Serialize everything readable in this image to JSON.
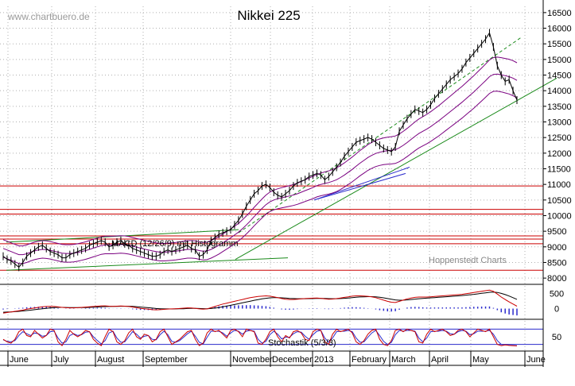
{
  "watermark": "www.chartbuero.de",
  "credit": "Hoppenstedt Charts",
  "chart_data": [
    {
      "type": "line",
      "title": "Nikkei 225",
      "y_ticks": [
        8000,
        8500,
        9000,
        9500,
        10000,
        10500,
        11000,
        11500,
        12000,
        12500,
        13000,
        13500,
        14000,
        14500,
        15000,
        15500,
        16000,
        16500
      ],
      "ylim": [
        7800,
        16700
      ],
      "x_labels": [
        "June",
        "July",
        "August",
        "September",
        "November",
        "December",
        "2013",
        "February",
        "March",
        "April",
        "May",
        "June"
      ],
      "horizontal_lines": [
        8250,
        9100,
        9250,
        9350,
        10050,
        10200,
        10950
      ],
      "series": [
        {
          "values": [
            8700,
            8600,
            8550,
            8450,
            8350,
            8500,
            8700,
            8800,
            8900,
            9000,
            9050,
            8950,
            8850,
            8800,
            8750,
            8650,
            8650,
            8750,
            8800,
            8850,
            8900,
            8950,
            9050,
            9100,
            9150,
            9200,
            9150,
            9000,
            9050,
            9150,
            9200,
            9100,
            9050,
            8950,
            8900,
            8850,
            8800,
            8750,
            8700,
            8700,
            8750,
            8850,
            8900,
            8850,
            8900,
            8950,
            9000,
            9050,
            8950,
            8900,
            8700,
            8750,
            8900,
            9200,
            9300,
            9400,
            9450,
            9500,
            9550,
            9700,
            9850,
            10050,
            10300,
            10500,
            10700,
            10800,
            10950,
            11000,
            10900,
            10750,
            10650,
            10600,
            10700,
            10800,
            10950,
            11050,
            11100,
            11150,
            11250,
            11300,
            11350,
            11300,
            11150,
            11250,
            11400,
            11550,
            11700,
            11900,
            12050,
            12200,
            12350,
            12400,
            12450,
            12500,
            12450,
            12350,
            12250,
            12150,
            12100,
            12050,
            12200,
            12700,
            12900,
            13100,
            13250,
            13400,
            13350,
            13300,
            13400,
            13550,
            13750,
            13900,
            14050,
            14200,
            14350,
            14450,
            14550,
            14700,
            14900,
            15050,
            15200,
            15350,
            15500,
            15650,
            15850,
            15400,
            14800,
            14500,
            14300,
            14350,
            14000,
            13700
          ]
        },
        {
          "values": [
            8950,
            8900,
            8850,
            8800,
            8750,
            8750,
            8780,
            8830,
            8870,
            8900,
            8920,
            8910,
            8890,
            8860,
            8830,
            8800,
            8790,
            8790,
            8800,
            8820,
            8850,
            8880,
            8920,
            8960,
            9000,
            9040,
            9060,
            9060,
            9060,
            9070,
            9080,
            9070,
            9050,
            9020,
            8990,
            8960,
            8930,
            8900,
            8870,
            8850,
            8830,
            8830,
            8840,
            8850,
            8860,
            8880,
            8900,
            8920,
            8920,
            8910,
            8880,
            8860,
            8870,
            8920,
            8980,
            9050,
            9130,
            9210,
            9290,
            9380,
            9470,
            9580,
            9700,
            9830,
            9970,
            10100,
            10230,
            10350,
            10440,
            10500,
            10540,
            10570,
            10600,
            10630,
            10660,
            10700,
            10750,
            10800,
            10850,
            10900,
            10960,
            11000,
            11030,
            11060,
            11100,
            11150,
            11220,
            11300,
            11390,
            11480,
            11580,
            11680,
            11770,
            11860,
            11930,
            11990,
            12030,
            12060,
            12080,
            12090,
            12110,
            12170,
            12250,
            12340,
            12440,
            12540,
            12630,
            12700,
            12770,
            12850,
            12940,
            13030,
            13130,
            13230,
            13330,
            13430,
            13530,
            13630,
            13740,
            13850,
            13960,
            14080,
            14200,
            14320,
            14450,
            14520,
            14530,
            14510,
            14480,
            14450,
            14400,
            14330
          ]
        }
      ]
    },
    {
      "type": "line",
      "title": "MACD (12/26/9) mit Histogramm",
      "y_ticks": [
        0,
        500
      ],
      "ylim": [
        -300,
        800
      ],
      "series": [
        {
          "values": [
            -150,
            -130,
            -110,
            -90,
            -70,
            -50,
            -20,
            0,
            20,
            40,
            60,
            70,
            75,
            70,
            55,
            40,
            30,
            25,
            25,
            30,
            40,
            50,
            60,
            70,
            80,
            90,
            90,
            80,
            75,
            80,
            85,
            80,
            70,
            50,
            30,
            10,
            -5,
            -20,
            -35,
            -40,
            -35,
            -25,
            -15,
            -10,
            -5,
            5,
            15,
            25,
            20,
            10,
            -10,
            -20,
            -10,
            30,
            70,
            110,
            150,
            180,
            210,
            240,
            270,
            300,
            330,
            360,
            380,
            400,
            410,
            420,
            410,
            390,
            360,
            330,
            310,
            300,
            300,
            310,
            320,
            330,
            340,
            345,
            350,
            340,
            320,
            310,
            315,
            330,
            350,
            370,
            390,
            410,
            420,
            420,
            415,
            405,
            390,
            360,
            320,
            280,
            240,
            210,
            200,
            240,
            280,
            320,
            350,
            370,
            380,
            380,
            380,
            390,
            400,
            410,
            420,
            430,
            440,
            450,
            460,
            470,
            490,
            510,
            530,
            550,
            570,
            590,
            610,
            570,
            480,
            380,
            300,
            220,
            150,
            80
          ]
        },
        {
          "values": [
            -120,
            -115,
            -110,
            -100,
            -90,
            -78,
            -65,
            -50,
            -35,
            -20,
            -5,
            10,
            25,
            35,
            40,
            40,
            38,
            35,
            33,
            32,
            33,
            36,
            40,
            46,
            52,
            60,
            66,
            70,
            72,
            74,
            76,
            77,
            76,
            71,
            63,
            52,
            41,
            29,
            16,
            5,
            -3,
            -8,
            -10,
            -11,
            -10,
            -7,
            -3,
            3,
            6,
            7,
            3,
            -2,
            -4,
            3,
            17,
            36,
            58,
            82,
            108,
            134,
            161,
            189,
            217,
            246,
            273,
            298,
            321,
            340,
            354,
            361,
            361,
            355,
            346,
            337,
            330,
            326,
            325,
            326,
            329,
            332,
            336,
            337,
            334,
            329,
            326,
            327,
            332,
            340,
            350,
            362,
            374,
            383,
            390,
            393,
            393,
            386,
            373,
            354,
            331,
            307,
            286,
            277,
            278,
            286,
            299,
            313,
            326,
            337,
            345,
            354,
            363,
            372,
            382,
            391,
            401,
            411,
            421,
            431,
            443,
            456,
            471,
            487,
            503,
            521,
            539,
            545,
            532,
            502,
            462,
            414,
            361,
            305
          ]
        }
      ]
    },
    {
      "type": "line",
      "title": "Stochastik (5/3/3)",
      "y_ticks": [
        50
      ],
      "ylim": [
        0,
        100
      ],
      "reference_lines": [
        20,
        80
      ],
      "series": [
        {
          "values": [
            40,
            30,
            25,
            40,
            70,
            80,
            55,
            50,
            75,
            60,
            45,
            55,
            80,
            75,
            30,
            15,
            40,
            75,
            60,
            50,
            60,
            75,
            70,
            40,
            25,
            15,
            50,
            80,
            70,
            30,
            20,
            35,
            65,
            80,
            50,
            40,
            60,
            55,
            30,
            40,
            70,
            80,
            50,
            20,
            30,
            40,
            55,
            70,
            75,
            40,
            15,
            25,
            65,
            80,
            70,
            75,
            60,
            45,
            75,
            80,
            70,
            50,
            80,
            75,
            70,
            25,
            20,
            40,
            70,
            80,
            50,
            30,
            55,
            45,
            70,
            75,
            65,
            40,
            35,
            70,
            80,
            75,
            30,
            20,
            60,
            80,
            70,
            75,
            80,
            65,
            30,
            20,
            35,
            60,
            75,
            80,
            40,
            20,
            15,
            35,
            75,
            80,
            70,
            80,
            75,
            70,
            30,
            25,
            60,
            80,
            70,
            75,
            80,
            70,
            55,
            60,
            75,
            80,
            70,
            50,
            65,
            80,
            75,
            70,
            80,
            50,
            20,
            15,
            18,
            16,
            15,
            14
          ]
        },
        {
          "values": [
            38,
            32,
            30,
            35,
            55,
            70,
            62,
            55,
            65,
            62,
            52,
            55,
            70,
            72,
            45,
            25,
            30,
            55,
            62,
            55,
            58,
            68,
            70,
            50,
            35,
            22,
            35,
            65,
            72,
            45,
            28,
            30,
            50,
            70,
            60,
            45,
            52,
            55,
            40,
            38,
            58,
            72,
            58,
            32,
            28,
            35,
            48,
            62,
            72,
            52,
            28,
            22,
            48,
            72,
            72,
            72,
            65,
            52,
            65,
            75,
            72,
            60,
            72,
            75,
            72,
            40,
            25,
            32,
            58,
            72,
            60,
            42,
            48,
            48,
            62,
            70,
            68,
            52,
            40,
            58,
            72,
            75,
            45,
            28,
            45,
            70,
            72,
            72,
            75,
            70,
            45,
            28,
            30,
            48,
            65,
            75,
            55,
            32,
            20,
            28,
            58,
            75,
            72,
            75,
            75,
            72,
            45,
            30,
            45,
            70,
            72,
            72,
            75,
            72,
            62,
            60,
            70,
            75,
            72,
            58,
            62,
            72,
            72,
            72,
            75,
            60,
            35,
            20,
            18,
            17,
            16,
            15
          ]
        }
      ]
    }
  ]
}
